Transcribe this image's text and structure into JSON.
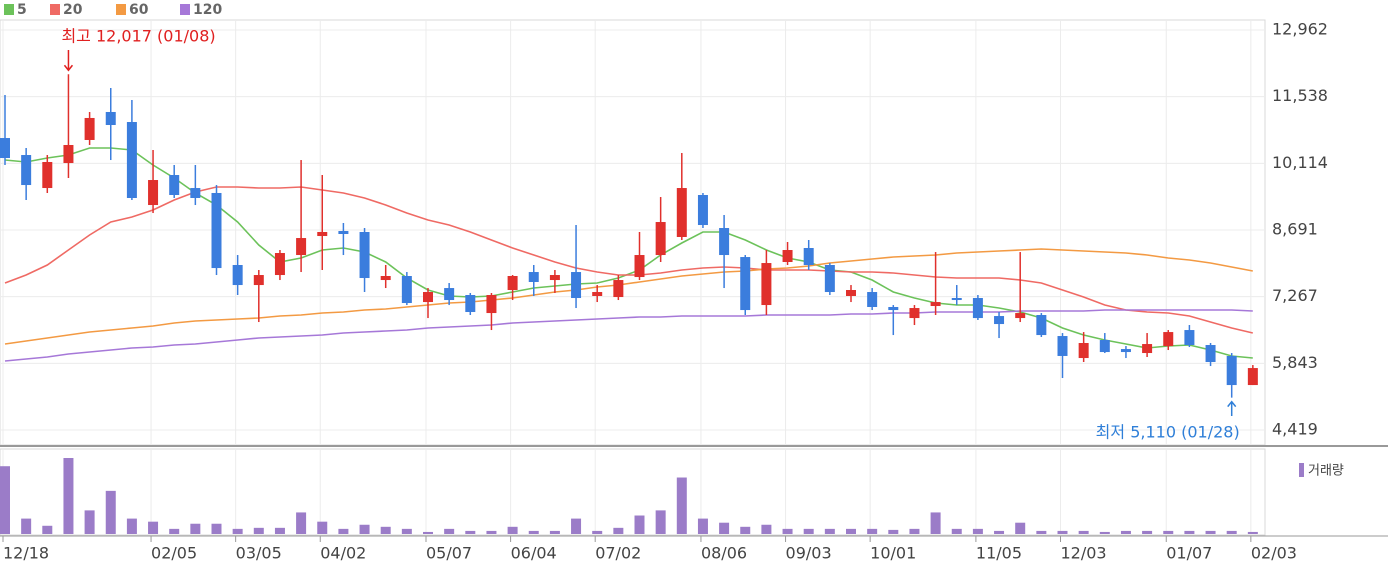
{
  "chart_data": {
    "type": "candlestick",
    "categories": [
      "12/18",
      null,
      null,
      null,
      null,
      null,
      null,
      "02/05",
      null,
      null,
      null,
      "03/05",
      null,
      null,
      null,
      "04/02",
      null,
      null,
      null,
      null,
      "05/07",
      null,
      null,
      null,
      "06/04",
      null,
      null,
      null,
      "07/02",
      null,
      null,
      null,
      null,
      "08/06",
      null,
      null,
      null,
      "09/03",
      null,
      null,
      null,
      "10/01",
      null,
      null,
      null,
      null,
      "11/05",
      null,
      null,
      null,
      "12/03",
      null,
      null,
      null,
      null,
      "01/07",
      null,
      null,
      null,
      "02/03"
    ],
    "open": [
      10655,
      10292,
      9587,
      10121,
      10613,
      11211,
      10997,
      9224,
      9865,
      9587,
      9481,
      7943,
      7515,
      7729,
      8156,
      8562,
      8669,
      8648,
      7622,
      7708,
      7152,
      7451,
      7302,
      6917,
      7409,
      7793,
      7622,
      7793,
      7281,
      7259,
      7686,
      8156,
      8541,
      9438,
      8733,
      8113,
      7088,
      8007,
      8306,
      7943,
      7281,
      7366,
      7046,
      6810,
      7067,
      7238,
      7238,
      6853,
      6810,
      6875,
      6426,
      5956,
      6341,
      6148,
      6063,
      6212,
      6554,
      6234,
      6000,
      5379
    ],
    "high": [
      11574,
      10442,
      10292,
      12017,
      11211,
      11723,
      11467,
      10399,
      10079,
      10079,
      9651,
      8156,
      7836,
      8263,
      10185,
      9865,
      8840,
      8733,
      7943,
      7793,
      7451,
      7558,
      7345,
      7345,
      7729,
      7943,
      7836,
      8797,
      7515,
      7729,
      8648,
      9395,
      10335,
      9481,
      9011,
      8156,
      8263,
      8434,
      8477,
      7985,
      7515,
      7451,
      7088,
      7088,
      8220,
      7515,
      7302,
      6939,
      8220,
      6917,
      6490,
      6511,
      6490,
      6212,
      6490,
      6554,
      6661,
      6277,
      6063,
      5806
    ],
    "low": [
      10079,
      9331,
      9481,
      9801,
      10506,
      10185,
      9331,
      9053,
      9374,
      9224,
      7729,
      7302,
      6725,
      7622,
      7793,
      7836,
      8156,
      7366,
      7451,
      7088,
      6810,
      7088,
      6875,
      6554,
      7195,
      7281,
      7345,
      7024,
      7152,
      7195,
      7622,
      8007,
      8477,
      8733,
      7451,
      6875,
      6875,
      7943,
      7836,
      7302,
      7152,
      6981,
      6447,
      6661,
      6875,
      7088,
      6768,
      6383,
      6725,
      6405,
      5529,
      5871,
      6063,
      5956,
      5978,
      6127,
      6191,
      5785,
      5110,
      5379
    ],
    "close": [
      10228,
      9651,
      10143,
      10506,
      11083,
      10933,
      9374,
      9758,
      9438,
      9374,
      7878,
      7515,
      7729,
      8199,
      8519,
      8648,
      8605,
      7665,
      7708,
      7131,
      7366,
      7195,
      6939,
      7302,
      7708,
      7580,
      7729,
      7238,
      7366,
      7622,
      8156,
      8861,
      9587,
      8797,
      8156,
      6981,
      7985,
      8263,
      7943,
      7366,
      7409,
      7046,
      6981,
      7024,
      7152,
      7195,
      6810,
      6682,
      6917,
      6447,
      6000,
      6277,
      6084,
      6084,
      6255,
      6511,
      6234,
      5871,
      5379,
      5742
    ],
    "up_color": "#e0302c",
    "down_color": "#3b7ddd",
    "moving_averages": [
      {
        "name": "5",
        "color": "#6cc25a",
        "values": [
          10185,
          10143,
          10228,
          10292,
          10442,
          10442,
          10399,
          10079,
          9801,
          9481,
          9224,
          8861,
          8370,
          8007,
          8092,
          8263,
          8306,
          8220,
          8007,
          7665,
          7409,
          7280,
          7259,
          7280,
          7366,
          7451,
          7494,
          7537,
          7558,
          7665,
          7836,
          8156,
          8413,
          8647,
          8647,
          8477,
          8263,
          8092,
          8007,
          7836,
          7793,
          7623,
          7366,
          7238,
          7131,
          7088,
          7088,
          7024,
          6939,
          6811,
          6597,
          6447,
          6341,
          6255,
          6170,
          6212,
          6234,
          6127,
          5999,
          5956
        ]
      },
      {
        "name": "20",
        "color": "#ef6a64",
        "values": [
          7558,
          7729,
          7943,
          8263,
          8583,
          8861,
          8968,
          9118,
          9331,
          9502,
          9609,
          9609,
          9587,
          9587,
          9609,
          9545,
          9481,
          9374,
          9224,
          9053,
          8904,
          8797,
          8648,
          8477,
          8306,
          8156,
          8007,
          7879,
          7793,
          7729,
          7729,
          7772,
          7836,
          7879,
          7900,
          7879,
          7836,
          7836,
          7836,
          7815,
          7793,
          7793,
          7772,
          7729,
          7686,
          7665,
          7665,
          7665,
          7623,
          7558,
          7409,
          7259,
          7088,
          6981,
          6939,
          6917,
          6853,
          6725,
          6597,
          6490
        ]
      },
      {
        "name": "60",
        "color": "#f39a43",
        "values": [
          6255,
          6319,
          6383,
          6447,
          6512,
          6554,
          6597,
          6640,
          6704,
          6746,
          6768,
          6789,
          6810,
          6853,
          6875,
          6917,
          6939,
          6981,
          7003,
          7046,
          7088,
          7131,
          7152,
          7195,
          7238,
          7302,
          7366,
          7409,
          7473,
          7515,
          7579,
          7643,
          7708,
          7750,
          7793,
          7815,
          7857,
          7879,
          7921,
          7985,
          8028,
          8071,
          8113,
          8135,
          8156,
          8199,
          8220,
          8242,
          8263,
          8284,
          8263,
          8242,
          8220,
          8199,
          8156,
          8092,
          8049,
          7985,
          7900,
          7815
        ]
      },
      {
        "name": "120",
        "color": "#a678d8",
        "values": [
          5892,
          5935,
          5978,
          6042,
          6084,
          6127,
          6170,
          6191,
          6234,
          6255,
          6298,
          6341,
          6383,
          6405,
          6426,
          6447,
          6490,
          6512,
          6533,
          6554,
          6597,
          6618,
          6640,
          6661,
          6704,
          6725,
          6746,
          6768,
          6789,
          6810,
          6832,
          6832,
          6853,
          6853,
          6853,
          6853,
          6875,
          6875,
          6875,
          6875,
          6896,
          6896,
          6917,
          6917,
          6939,
          6939,
          6939,
          6939,
          6960,
          6960,
          6960,
          6960,
          6981,
          6981,
          6981,
          6981,
          6981,
          6981,
          6981,
          6960
        ]
      }
    ],
    "volume": {
      "name": "거래량",
      "color": "#9b7cc8",
      "values": [
        66,
        15,
        8,
        74,
        23,
        42,
        15,
        12,
        5,
        10,
        10,
        5,
        6,
        6,
        21,
        12,
        5,
        9,
        7,
        5,
        2,
        5,
        3,
        3,
        7,
        3,
        3,
        15,
        3,
        6,
        18,
        23,
        55,
        15,
        11,
        7,
        9,
        5,
        5,
        5,
        5,
        5,
        4,
        5,
        21,
        5,
        5,
        3,
        11,
        3,
        3,
        3,
        2,
        3,
        3,
        3,
        3,
        3,
        3,
        2
      ]
    },
    "ylim": [
      4419,
      12962
    ],
    "yticks": [
      {
        "value": 4419,
        "label": "4,419"
      },
      {
        "value": 5843,
        "label": "5,843"
      },
      {
        "value": 7267,
        "label": "7,267"
      },
      {
        "value": 8691,
        "label": "8,691"
      },
      {
        "value": 10114,
        "label": "10,114"
      },
      {
        "value": 11538,
        "label": "11,538"
      },
      {
        "value": 12962,
        "label": "12,962"
      }
    ],
    "grid": true,
    "annotations": [
      {
        "text": "최고 12,017 (01/08)",
        "color": "#e02020"
      },
      {
        "text": "최저 5,110 (01/28)",
        "color": "#2f7fd8"
      }
    ]
  }
}
